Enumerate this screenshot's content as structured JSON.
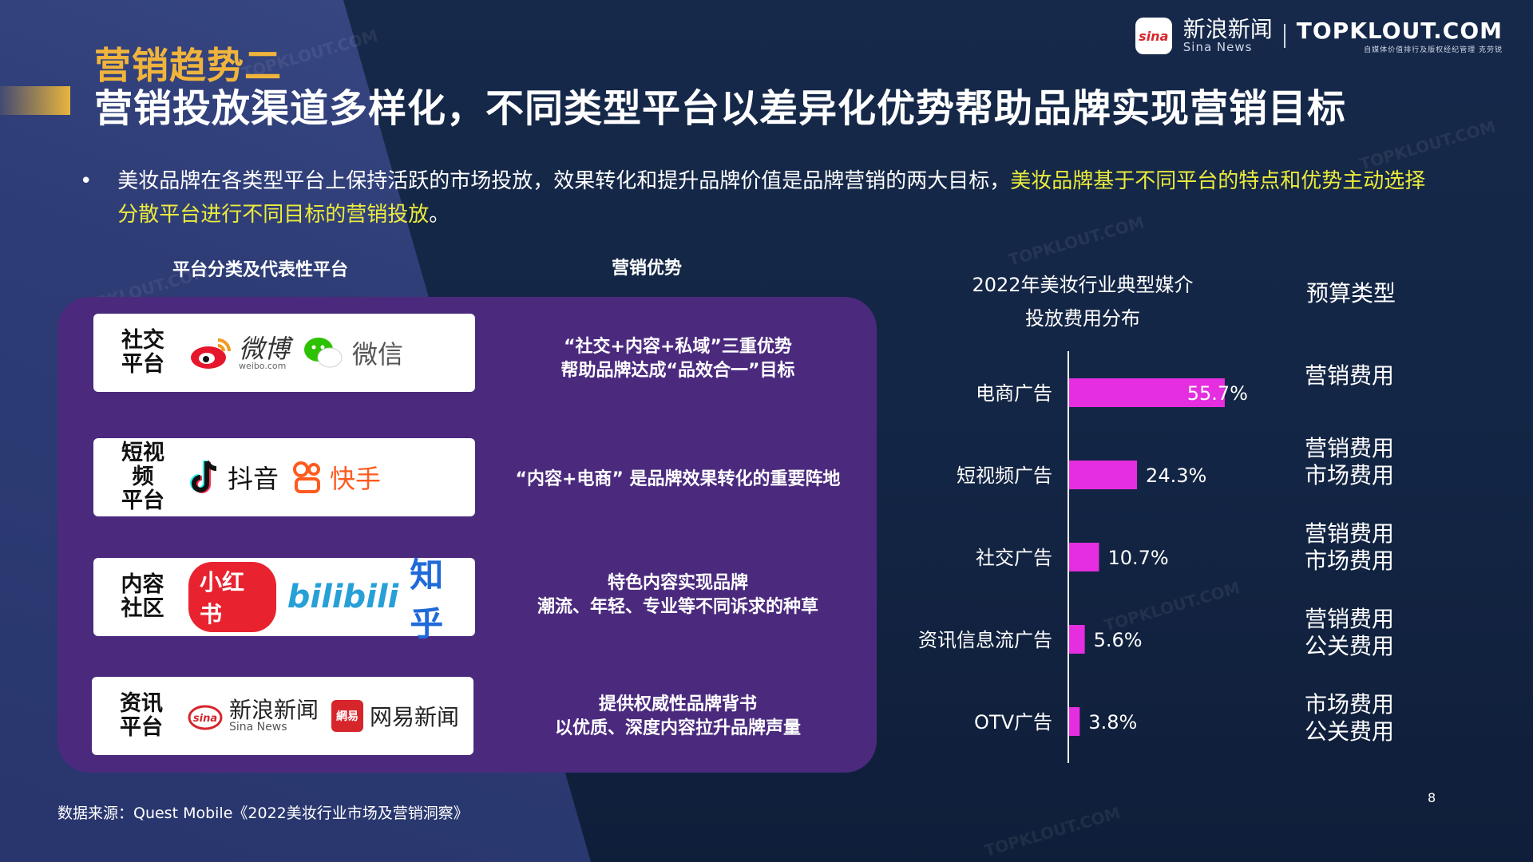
{
  "header": {
    "subtitle": "营销趋势二",
    "title": "营销投放渠道多样化，不同类型平台以差异化优势帮助品牌实现营销目标"
  },
  "logos": {
    "sina_badge": "sina",
    "sina_cn": "新浪新闻",
    "sina_en": "Sina News",
    "topklout": "TOPKLOUT.COM",
    "topklout_sub": "自媒体价值排行及版权经纪管理  克劳锐"
  },
  "bullet": {
    "symbol": "•",
    "text_plain": "美妆品牌在各类型平台上保持活跃的市场投放，效果转化和提升品牌价值是品牌营销的两大目标，",
    "text_highlight": "美妆品牌基于不同平台的特点和优势主动选择分散平台进行不同目标的营销投放",
    "text_end": "。"
  },
  "columns": {
    "platform_header": "平台分类及代表性平台",
    "advantage_header": "营销优势"
  },
  "platforms": [
    {
      "category": "社交\n平台",
      "logos": [
        {
          "name": "微博",
          "sub": "weibo.com",
          "icon": "weibo-icon"
        },
        {
          "name": "微信",
          "icon": "wechat-icon"
        }
      ],
      "advantage": "“社交+内容+私域”三重优势\n帮助品牌达成“品效合一”目标"
    },
    {
      "category": "短视频\n平台",
      "logos": [
        {
          "name": "抖音",
          "icon": "douyin-icon"
        },
        {
          "name": "快手",
          "icon": "kuaishou-icon"
        }
      ],
      "advantage": "“内容+电商” 是品牌效果转化的重要阵地"
    },
    {
      "category": "内容\n社区",
      "logos": [
        {
          "name": "小红书"
        },
        {
          "name": "bilibili"
        },
        {
          "name": "知乎"
        }
      ],
      "advantage": "特色内容实现品牌\n潮流、年轻、专业等不同诉求的种草"
    },
    {
      "category": "资讯\n平台",
      "logos": [
        {
          "name": "新浪新闻",
          "sub": "Sina News",
          "icon": "sina-icon"
        },
        {
          "name": "网易新闻",
          "badge": "網易"
        }
      ],
      "advantage": "提供权威性品牌背书\n以优质、深度内容拉升品牌声量"
    }
  ],
  "chart_data": {
    "type": "bar",
    "orientation": "horizontal",
    "title": "2022年美妆行业典型媒介\n投放费用分布",
    "categories": [
      "电商广告",
      "短视频广告",
      "社交广告",
      "资讯信息流广告",
      "OTV广告"
    ],
    "values": [
      55.7,
      24.3,
      10.7,
      5.6,
      3.8
    ],
    "value_labels": [
      "55.7%",
      "24.3%",
      "10.7%",
      "5.6%",
      "3.8%"
    ],
    "bar_color": "#e52ee0",
    "xlim": [
      0,
      100
    ],
    "grid": false
  },
  "budget": {
    "header": "预算类型",
    "rows": [
      "营销费用",
      "营销费用\n市场费用",
      "营销费用\n市场费用",
      "营销费用\n公关费用",
      "市场费用\n公关费用"
    ]
  },
  "footer": {
    "source": "数据来源：Quest Mobile《2022美妆行业市场及营销洞察》",
    "page": "8"
  },
  "watermark": "TOPKLOUT.COM",
  "colors": {
    "accent_yellow": "#f0b43c",
    "highlight_yellow": "#ecec3c",
    "panel_purple": "#4b2a7e",
    "bar_magenta": "#e52ee0"
  }
}
